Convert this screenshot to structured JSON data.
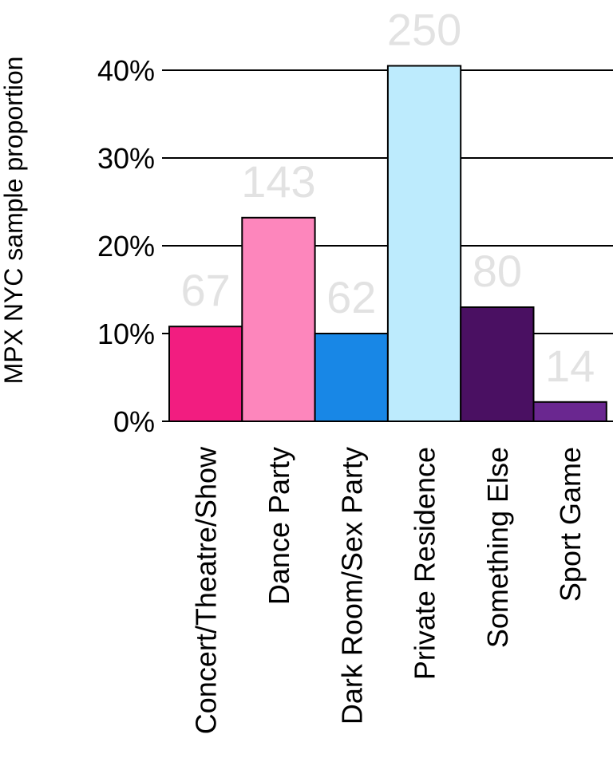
{
  "chart_data": {
    "type": "bar",
    "title": "",
    "xlabel": "",
    "ylabel": "MPX NYC sample proportion",
    "ylim": [
      0,
      0.45
    ],
    "yticks": [
      0,
      0.1,
      0.2,
      0.3,
      0.4
    ],
    "ytick_labels": [
      "0%",
      "10%",
      "20%",
      "30%",
      "40%"
    ],
    "grid": true,
    "categories": [
      "Concert/Theatre/Show",
      "Dance Party",
      "Dark Room/Sex Party",
      "Private Residence",
      "Something Else",
      "Sport Game"
    ],
    "values": [
      0.108,
      0.232,
      0.1,
      0.405,
      0.13,
      0.022
    ],
    "counts": [
      "67",
      "143",
      "62",
      "250",
      "80",
      "14"
    ],
    "colors": [
      "#f21d80",
      "#fd86bc",
      "#1887e6",
      "#bdebfd",
      "#4a1062",
      "#6a2790"
    ]
  }
}
